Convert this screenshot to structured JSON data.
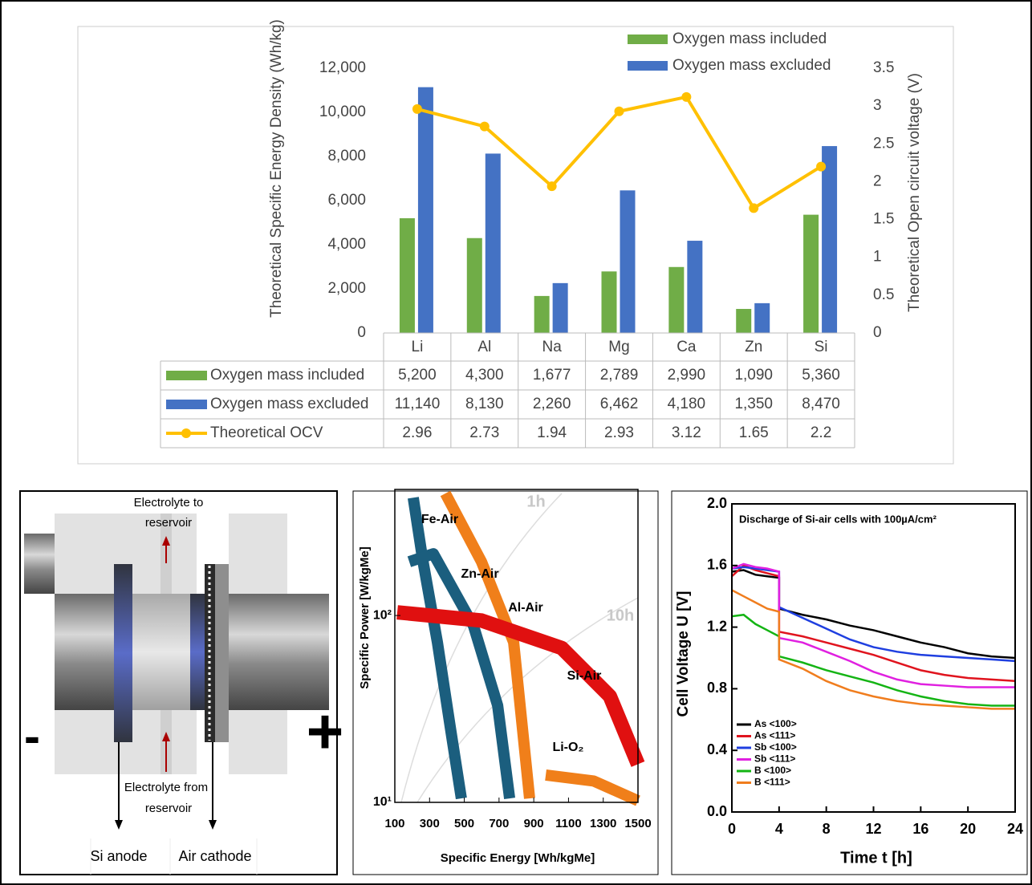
{
  "chart_data": [
    {
      "type": "bar",
      "y_label": "Theoretical Specific Energy Density (Wh/kg)",
      "y2_label": "Theoretical Open circuit voltage (V)",
      "categories": [
        "Li",
        "Al",
        "Na",
        "Mg",
        "Ca",
        "Zn",
        "Si"
      ],
      "series": [
        {
          "name": "Oxygen mass included",
          "color": "#70ad47",
          "values": [
            5200,
            4300,
            1677,
            2789,
            2990,
            1090,
            5360
          ],
          "value_labels": [
            "5,200",
            "4,300",
            "1,677",
            "2,789",
            "2,990",
            "1,090",
            "5,360"
          ]
        },
        {
          "name": "Oxygen mass excluded",
          "color": "#4472c4",
          "values": [
            11140,
            8130,
            2260,
            6462,
            4180,
            1350,
            8470
          ],
          "value_labels": [
            "11,140",
            "8,130",
            "2,260",
            "6,462",
            "4,180",
            "1,350",
            "8,470"
          ]
        },
        {
          "name": "Theoretical OCV",
          "type": "line",
          "axis": "y2",
          "color": "#ffc000",
          "values": [
            2.96,
            2.73,
            1.94,
            2.93,
            3.12,
            1.65,
            2.2
          ]
        }
      ],
      "ylim": [
        0,
        12000
      ],
      "yticks": [
        0,
        {
          "value": 2000,
          "label": "2,000"
        },
        {
          "value": 4000,
          "label": "4,000"
        },
        {
          "value": 6000,
          "label": "6,000"
        },
        {
          "value": 8000,
          "label": "8,000"
        },
        {
          "value": 10000,
          "label": "10,000"
        },
        {
          "value": 12000,
          "label": "12,000"
        }
      ],
      "y2lim": [
        0,
        3.5
      ],
      "y2ticks": [
        0,
        0.5,
        1,
        1.5,
        2,
        2.5,
        3,
        3.5
      ],
      "legend": "top right",
      "data_table": true
    },
    {
      "type": "line",
      "x_label": "Specific Energy [Wh/kgMe]",
      "y_label": "Specific Power [W/kgMe]",
      "y_scale": "log",
      "xlim": [
        100,
        1500
      ],
      "xticks": [
        100,
        300,
        500,
        700,
        900,
        1100,
        1300,
        1500
      ],
      "ylim": [
        10,
        450
      ],
      "yticks": [
        {
          "value": 10,
          "label": "10¹"
        },
        {
          "value": 100,
          "label": "10²"
        }
      ],
      "annotations": [
        "1h",
        "10h"
      ],
      "series": [
        {
          "name": "Fe-Air",
          "color": "#1b5e7e",
          "x": [
            206,
            260,
            345,
            420,
            483
          ],
          "values": [
            427,
            200,
            72,
            25,
            10.5
          ]
        },
        {
          "name": "Zn-Air",
          "color": "#1b5e7e",
          "x": [
            183,
            322,
            553,
            692,
            761
          ],
          "values": [
            194,
            214,
            88,
            33,
            10.5
          ]
        },
        {
          "name": "Al-Air",
          "color": "#f07f1a",
          "x": [
            391,
            599,
            784,
            876
          ],
          "values": [
            450,
            194,
            72,
            10.5
          ]
        },
        {
          "name": "Si-Air",
          "color": "#e01010",
          "x": [
            114,
            599,
            1061,
            1338,
            1500
          ],
          "values": [
            104,
            94,
            67,
            37,
            16
          ]
        },
        {
          "name": "Li-O₂",
          "color": "#f07f1a",
          "x": [
            969,
            1246,
            1500
          ],
          "values": [
            14,
            13,
            10.2
          ]
        }
      ]
    },
    {
      "type": "line",
      "title": "Discharge of Si-air cells with 100µA/cm²",
      "x_label": "Time t [h]",
      "y_label": "Cell Voltage U [V]",
      "x": [
        0,
        1,
        2,
        3,
        4,
        4,
        6,
        8,
        10,
        12,
        14,
        16,
        18,
        20,
        22,
        24
      ],
      "xlim": [
        0,
        24
      ],
      "xticks": [
        0,
        4,
        8,
        12,
        16,
        20,
        24
      ],
      "ylim": [
        0,
        2
      ],
      "yticks": [
        {
          "value": 0,
          "label": "0.0"
        },
        0.4,
        0.8,
        1.2,
        1.6,
        {
          "value": 2,
          "label": "2.0"
        }
      ],
      "legend": "lower left",
      "series": [
        {
          "name": "As <100>",
          "color": "#000000",
          "values": [
            1.56,
            1.57,
            1.54,
            1.53,
            1.52,
            1.32,
            1.28,
            1.25,
            1.21,
            1.18,
            1.14,
            1.1,
            1.07,
            1.03,
            1.01,
            1.0
          ]
        },
        {
          "name": "As <111>",
          "color": "#e0141e",
          "values": [
            1.53,
            1.6,
            1.57,
            1.55,
            1.53,
            1.17,
            1.14,
            1.1,
            1.06,
            1.02,
            0.97,
            0.92,
            0.89,
            0.87,
            0.86,
            0.85
          ]
        },
        {
          "name": "Sb <100>",
          "color": "#1f3fe0",
          "values": [
            1.58,
            1.59,
            1.58,
            1.57,
            1.56,
            1.33,
            1.26,
            1.19,
            1.12,
            1.07,
            1.04,
            1.02,
            1.01,
            1.0,
            0.99,
            0.98
          ]
        },
        {
          "name": "Sb <111>",
          "color": "#e020e0",
          "values": [
            1.58,
            1.61,
            1.59,
            1.58,
            1.56,
            1.13,
            1.1,
            1.04,
            0.98,
            0.91,
            0.86,
            0.83,
            0.82,
            0.81,
            0.81,
            0.81
          ]
        },
        {
          "name": "B  <100>",
          "color": "#14b414",
          "values": [
            1.27,
            1.28,
            1.22,
            1.18,
            1.14,
            1.01,
            0.97,
            0.92,
            0.88,
            0.84,
            0.79,
            0.75,
            0.72,
            0.7,
            0.69,
            0.69
          ]
        },
        {
          "name": "B  <111>",
          "color": "#f07d1e",
          "values": [
            1.44,
            1.4,
            1.36,
            1.32,
            1.3,
            0.99,
            0.93,
            0.85,
            0.79,
            0.75,
            0.72,
            0.7,
            0.69,
            0.68,
            0.67,
            0.67
          ]
        }
      ]
    }
  ],
  "diagram": {
    "electrolyte_to": [
      "Electrolyte to",
      "reservoir"
    ],
    "electrolyte_from": [
      "Electrolyte from",
      "reservoir"
    ],
    "anode": "Si anode",
    "cathode": "Air cathode",
    "minus": "-",
    "plus": "+"
  }
}
